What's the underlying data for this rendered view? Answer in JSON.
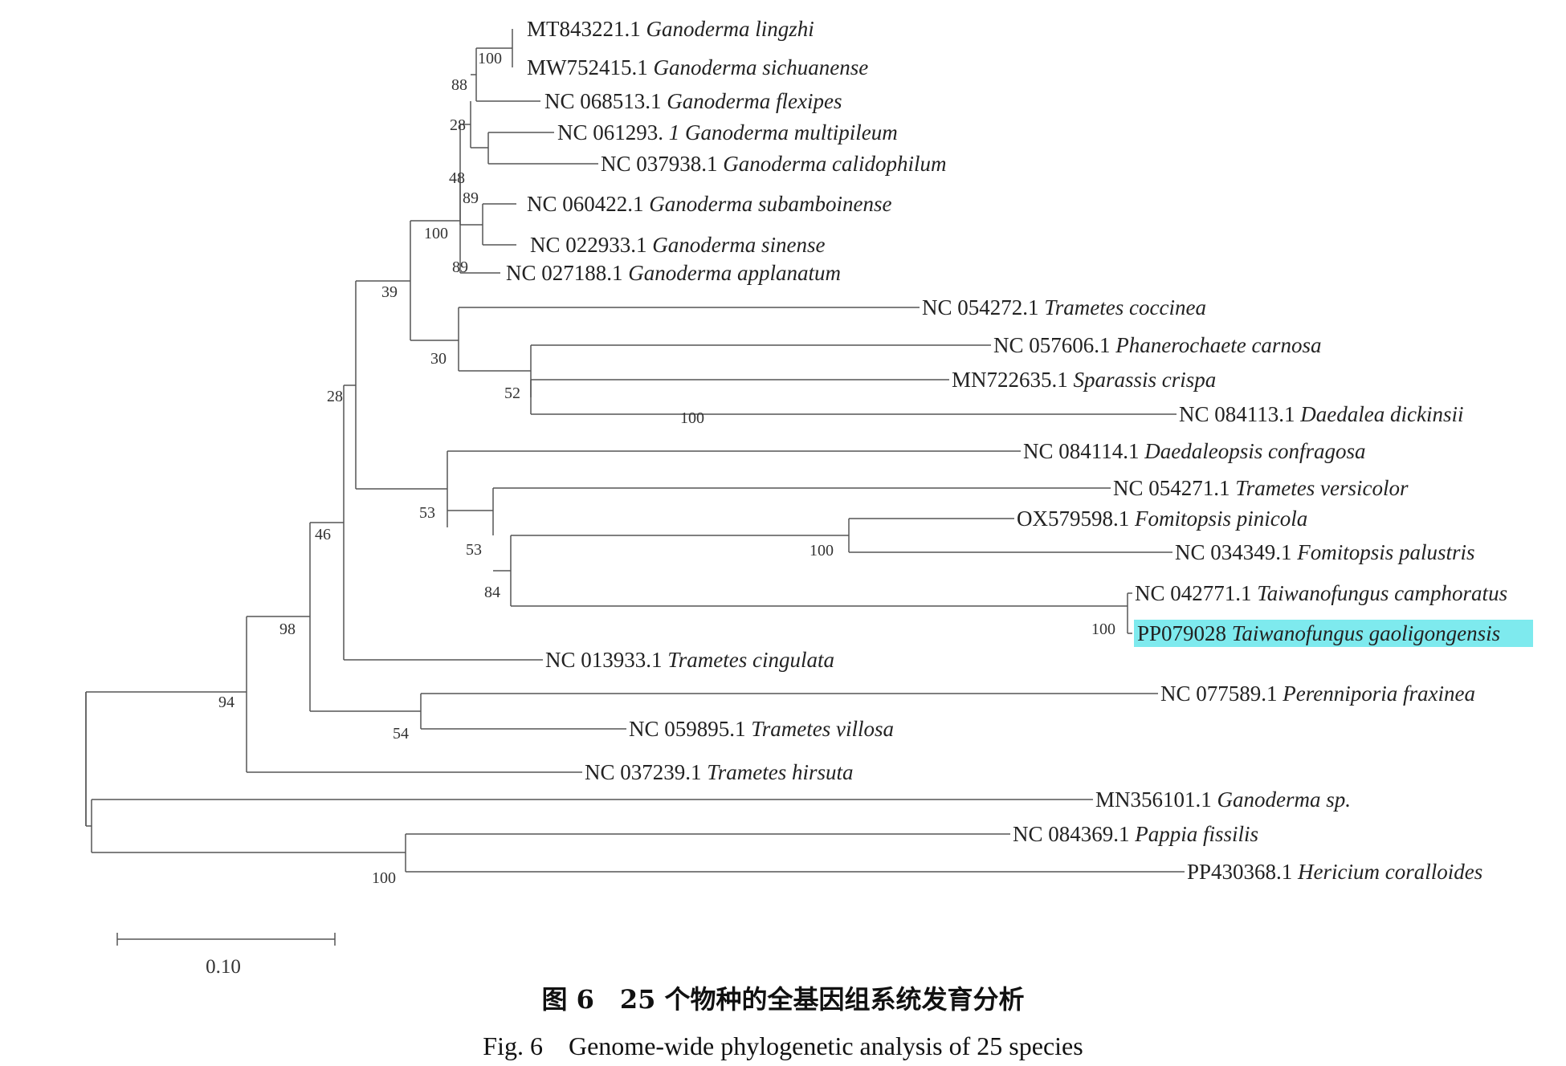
{
  "scale_bar": {
    "label": "0.10"
  },
  "caption": {
    "chinese": "图 6　25 个物种的全基因组系统发育分析",
    "english": "Fig. 6　Genome-wide phylogenetic analysis of 25 species"
  },
  "taxa": [
    {
      "accession": "MT843221.1",
      "species": "Ganoderma lingzhi"
    },
    {
      "accession": "MW752415.1",
      "species": "Ganoderma sichuanense"
    },
    {
      "accession": "NC 068513.1",
      "species": "Ganoderma flexipes"
    },
    {
      "accession": "NC 061293.",
      "species": "1 Ganoderma multipileum"
    },
    {
      "accession": "NC 037938.1",
      "species": "Ganoderma calidophilum"
    },
    {
      "accession": "NC 060422.1",
      "species": "Ganoderma subamboinense"
    },
    {
      "accession": "NC 022933.1",
      "species": "Ganoderma sinense"
    },
    {
      "accession": "NC 027188.1",
      "species": "Ganoderma applanatum"
    },
    {
      "accession": "NC 054272.1",
      "species": "Trametes coccinea"
    },
    {
      "accession": "NC 057606.1",
      "species": "Phanerochaete carnosa"
    },
    {
      "accession": "MN722635.1",
      "species": "Sparassis crispa"
    },
    {
      "accession": "NC 084113.1",
      "species": "Daedalea dickinsii"
    },
    {
      "accession": "NC 084114.1",
      "species": "Daedaleopsis confragosa"
    },
    {
      "accession": "NC 054271.1",
      "species": "Trametes versicolor"
    },
    {
      "accession": "OX579598.1",
      "species": "Fomitopsis pinicola"
    },
    {
      "accession": "NC 034349.1",
      "species": "Fomitopsis palustris"
    },
    {
      "accession": "NC 042771.1",
      "species": "Taiwanofungus camphoratus"
    },
    {
      "accession": "PP079028",
      "species": "Taiwanofungus gaoligongensis",
      "highlight": true
    },
    {
      "accession": "NC 013933.1",
      "species": "Trametes cingulata"
    },
    {
      "accession": "NC 077589.1",
      "species": "Perenniporia fraxinea"
    },
    {
      "accession": "NC 059895.1",
      "species": "Trametes villosa"
    },
    {
      "accession": "NC 037239.1",
      "species": "Trametes hirsuta"
    },
    {
      "accession": "MN356101.1",
      "species": "Ganoderma sp."
    },
    {
      "accession": "NC 084369.1",
      "species": "Pappia fissilis"
    },
    {
      "accession": "PP430368.1",
      "species": "Hericium coralloides"
    }
  ],
  "bootstrap": [
    "100",
    "88",
    "28",
    "48",
    "89",
    "100",
    "89",
    "39",
    "30",
    "52",
    "100",
    "28",
    "53",
    "53",
    "100",
    "84",
    "100",
    "46",
    "98",
    "54",
    "94",
    "100"
  ],
  "colors": {
    "highlight": "#7eeaee",
    "branch": "#555555"
  }
}
